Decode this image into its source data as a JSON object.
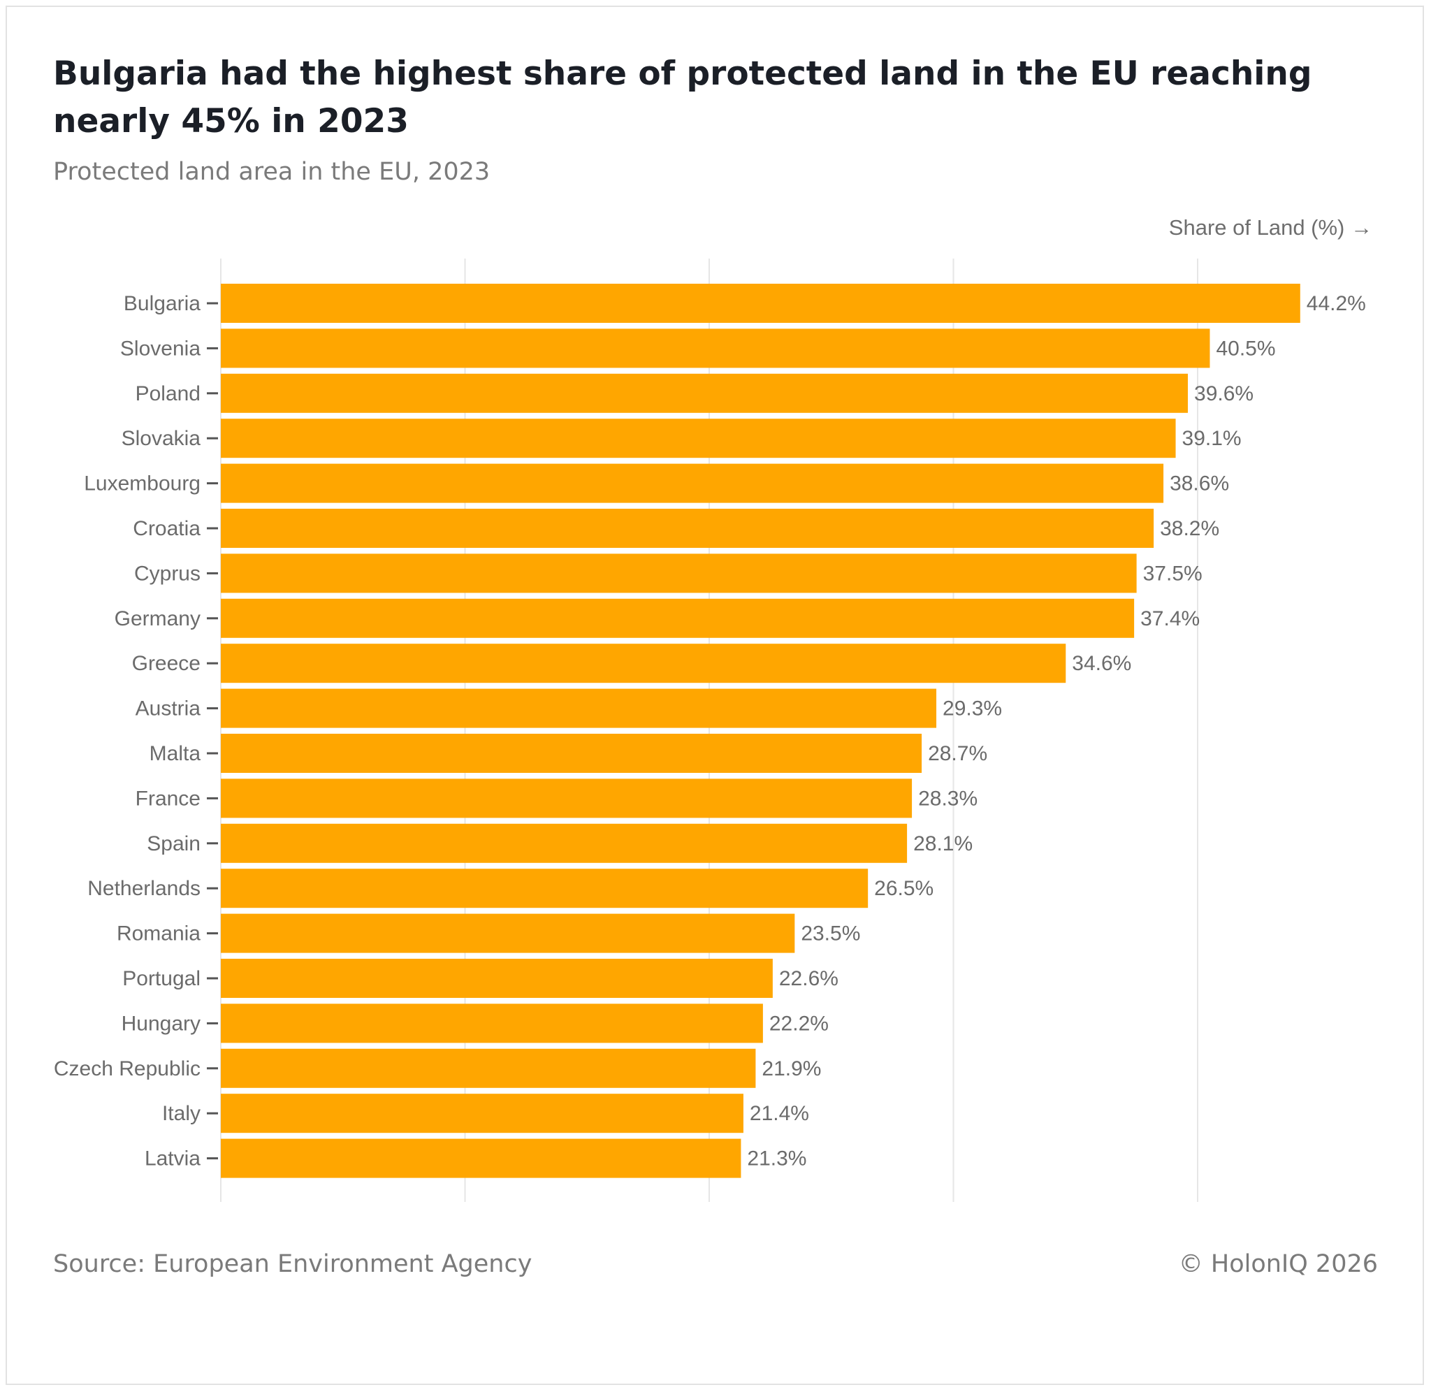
{
  "header": {
    "title": "Bulgaria had the highest share of protected land in the EU reaching nearly 45% in 2023",
    "subtitle": "Protected land area in the EU, 2023"
  },
  "footer": {
    "source": "Source: European Environment Agency",
    "copyright": "© HolonIQ 2026"
  },
  "colors": {
    "bar": "#FFA600",
    "grid": "#e6e6e6",
    "label": "#6b6b6b"
  },
  "chart_data": {
    "type": "bar",
    "orientation": "horizontal",
    "title": "Bulgaria had the highest share of protected land in the EU reaching nearly 45% in 2023",
    "subtitle": "Protected land area in the EU, 2023",
    "xlabel": "Share of Land (%) →",
    "ylabel": "",
    "xlim": [
      0,
      50
    ],
    "grid": true,
    "value_suffix": "%",
    "categories": [
      "Bulgaria",
      "Slovenia",
      "Poland",
      "Slovakia",
      "Luxembourg",
      "Croatia",
      "Cyprus",
      "Germany",
      "Greece",
      "Austria",
      "Malta",
      "France",
      "Spain",
      "Netherlands",
      "Romania",
      "Portugal",
      "Hungary",
      "Czech Republic",
      "Italy",
      "Latvia"
    ],
    "values": [
      44.2,
      40.5,
      39.6,
      39.1,
      38.6,
      38.2,
      37.5,
      37.4,
      34.6,
      29.3,
      28.7,
      28.3,
      28.1,
      26.5,
      23.5,
      22.6,
      22.2,
      21.9,
      21.4,
      21.3
    ]
  }
}
